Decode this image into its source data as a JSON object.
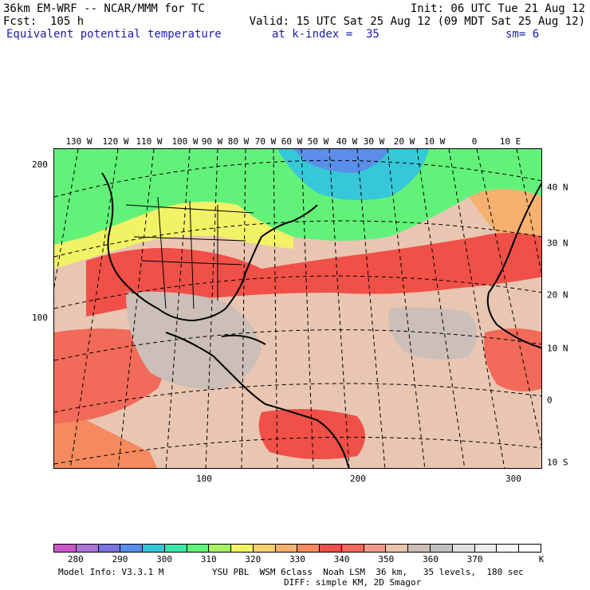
{
  "header": {
    "model": "36km EM-WRF -- NCAR/MMM for TC",
    "init": "Init: 06 UTC Tue 21 Aug 12",
    "fcst": "Fcst:  105 h",
    "valid": "Valid: 15 UTC Sat 25 Aug 12 (09 MDT Sat 25 Aug 12)",
    "field": "Equivalent potential temperature",
    "level": "at k-index =  35",
    "smooth": "sm= 6"
  },
  "map": {
    "lon_labels": [
      "130 W",
      "120 W",
      "110 W",
      "100 W",
      "90 W",
      "80 W",
      "70 W",
      "60 W",
      "50 W",
      "40 W",
      "30 W",
      "20 W",
      "10 W",
      "0",
      "10 E"
    ],
    "lat_labels": [
      "40 N",
      "30 N",
      "20 N",
      "10 N",
      "0",
      "10 S"
    ],
    "y_ticks": [
      "200",
      "100"
    ],
    "x_ticks": [
      "100",
      "200",
      "300"
    ]
  },
  "colorbar": {
    "colors": [
      "#cc55cc",
      "#a874d6",
      "#7a73e0",
      "#5a8ee8",
      "#36c8d8",
      "#3ce6a8",
      "#62f27a",
      "#a8f066",
      "#f2f266",
      "#f8d070",
      "#f6b070",
      "#f48a5e",
      "#f05048",
      "#f26a5a",
      "#f29a8a",
      "#eac4b0",
      "#cbbfb8",
      "#c0c0c0",
      "#e0e0e0",
      "#ededed",
      "#f8f8f8",
      "#ffffff"
    ],
    "labels": [
      "280",
      "290",
      "300",
      "310",
      "320",
      "330",
      "340",
      "350",
      "360",
      "370"
    ],
    "unit": "K"
  },
  "footer": {
    "model_info": "Model Info: V3.3.1 M",
    "physics": "YSU PBL  WSM 6class  Noah LSM  36 km,   35 levels,  180 sec",
    "diffusion": "DIFF: simple KM, 2D Smagor"
  }
}
